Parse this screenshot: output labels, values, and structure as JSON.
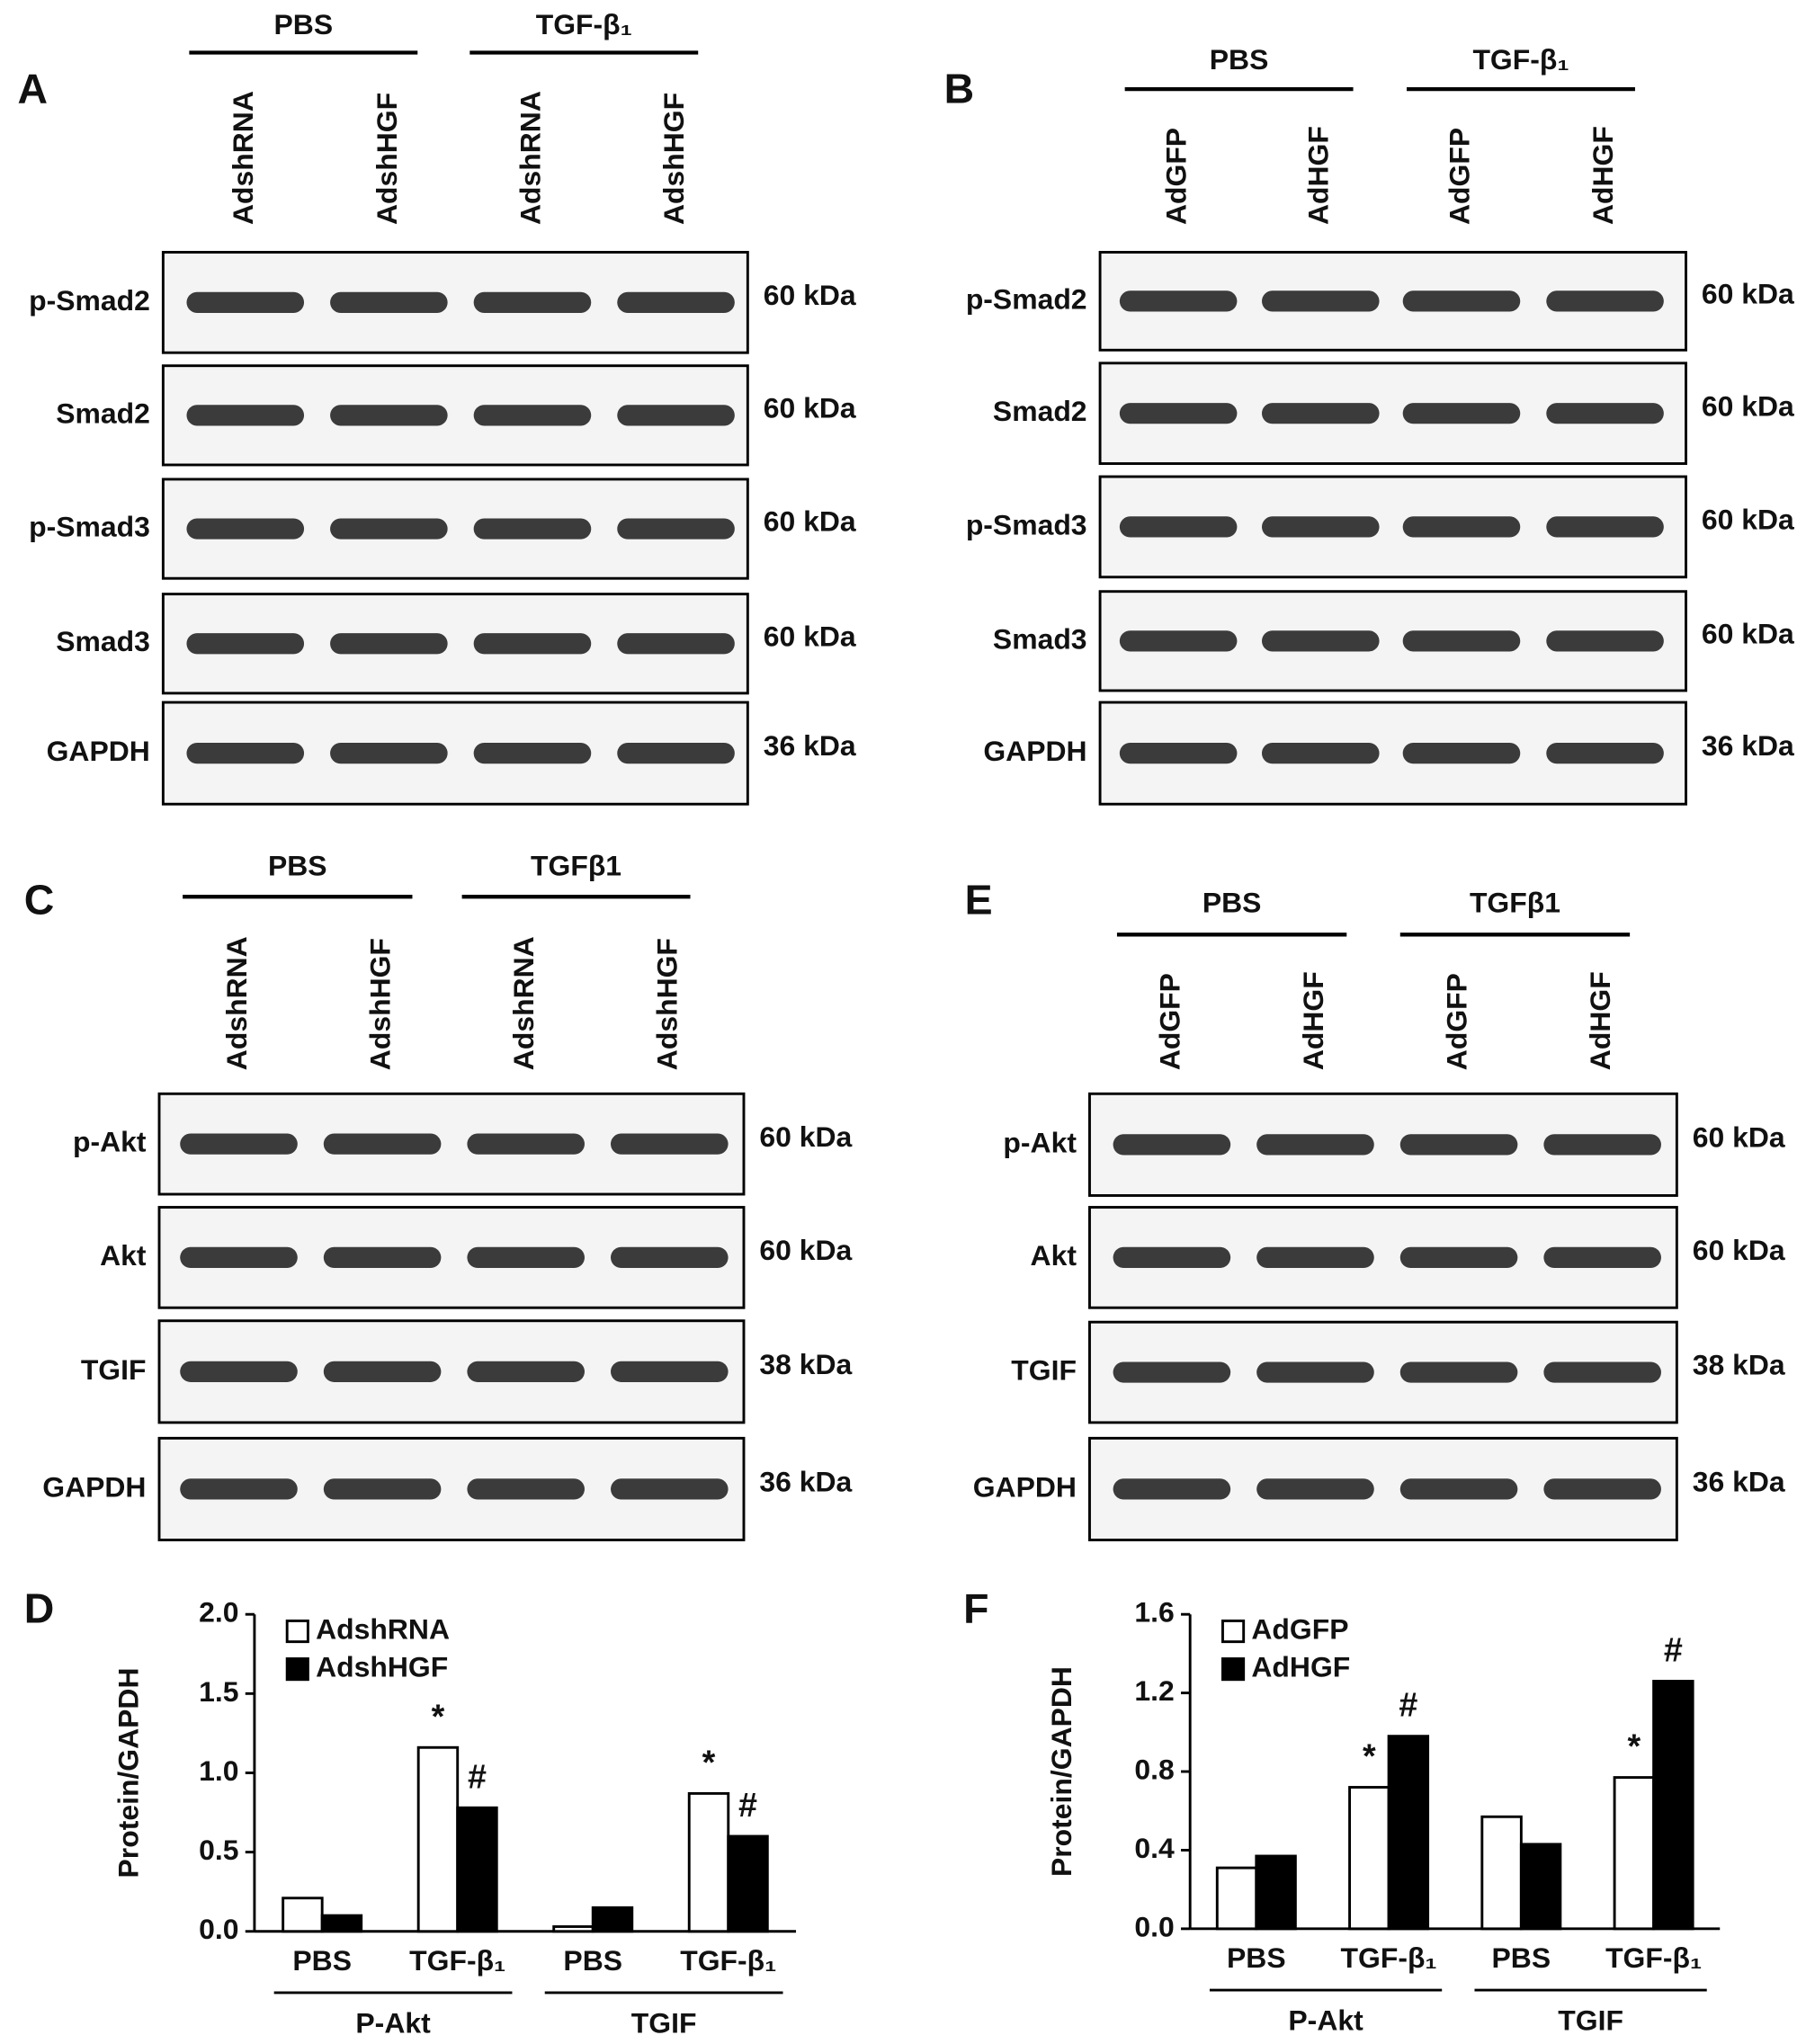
{
  "panels": [
    {
      "label": "A",
      "groups": [
        "PBS",
        "TGF-β₁"
      ],
      "lanes": [
        "AdshRNA",
        "AdshHGF",
        "AdshRNA",
        "AdshHGF"
      ],
      "rows": [
        {
          "name": "p-Smad2",
          "size": "60 kDa"
        },
        {
          "name": "Smad2",
          "size": "60 kDa"
        },
        {
          "name": "p-Smad3",
          "size": "60 kDa"
        },
        {
          "name": "Smad3",
          "size": "60 kDa"
        },
        {
          "name": "GAPDH",
          "size": "36 kDa"
        }
      ]
    },
    {
      "label": "B",
      "groups": [
        "PBS",
        "TGF-β₁"
      ],
      "lanes": [
        "AdGFP",
        "AdHGF",
        "AdGFP",
        "AdHGF"
      ],
      "rows": [
        {
          "name": "p-Smad2",
          "size": "60 kDa"
        },
        {
          "name": "Smad2",
          "size": "60 kDa"
        },
        {
          "name": "p-Smad3",
          "size": "60 kDa"
        },
        {
          "name": "Smad3",
          "size": "60 kDa"
        },
        {
          "name": "GAPDH",
          "size": "36 kDa"
        }
      ]
    },
    {
      "label": "C",
      "groups": [
        "PBS",
        "TGFβ1"
      ],
      "lanes": [
        "AdshRNA",
        "AdshHGF",
        "AdshRNA",
        "AdshHGF"
      ],
      "rows": [
        {
          "name": "p-Akt",
          "size": "60 kDa"
        },
        {
          "name": "Akt",
          "size": "60 kDa"
        },
        {
          "name": "TGIF",
          "size": "38 kDa"
        },
        {
          "name": "GAPDH",
          "size": "36 kDa"
        }
      ]
    },
    {
      "label": "E",
      "groups": [
        "PBS",
        "TGFβ1"
      ],
      "lanes": [
        "AdGFP",
        "AdHGF",
        "AdGFP",
        "AdHGF"
      ],
      "rows": [
        {
          "name": "p-Akt",
          "size": "60 kDa"
        },
        {
          "name": "Akt",
          "size": "60 kDa"
        },
        {
          "name": "TGIF",
          "size": "38 kDa"
        },
        {
          "name": "GAPDH",
          "size": "36 kDa"
        }
      ]
    }
  ],
  "chart_data": [
    {
      "type": "bar",
      "panel_label": "D",
      "y_label": "Protein/GAPDH",
      "categories": [
        "PBS",
        "TGF-β₁",
        "PBS",
        "TGF-β₁"
      ],
      "groups": [
        "P-Akt",
        "TGIF"
      ],
      "series": [
        {
          "name": "AdshRNA",
          "color": "#ffffff",
          "values": [
            0.21,
            1.16,
            0.03,
            0.87
          ],
          "annotations": [
            null,
            "*",
            null,
            "*"
          ]
        },
        {
          "name": "AdshHGF",
          "color": "#000000",
          "values": [
            0.1,
            0.78,
            0.15,
            0.6
          ],
          "annotations": [
            null,
            "#",
            null,
            "#"
          ]
        }
      ],
      "ylim": [
        0,
        2
      ],
      "yticks": [
        {
          "value": 0,
          "label": "0.0"
        },
        {
          "value": 0.5,
          "label": "0.5"
        },
        {
          "value": 1,
          "label": "1.0"
        },
        {
          "value": 1.5,
          "label": "1.5"
        },
        {
          "value": 2,
          "label": "2.0"
        }
      ]
    },
    {
      "type": "bar",
      "panel_label": "F",
      "y_label": "Protein/GAPDH",
      "categories": [
        "PBS",
        "TGF-β₁",
        "PBS",
        "TGF-β₁"
      ],
      "groups": [
        "P-Akt",
        "TGIF"
      ],
      "series": [
        {
          "name": "AdGFP",
          "color": "#ffffff",
          "values": [
            0.31,
            0.72,
            0.57,
            0.77
          ],
          "annotations": [
            null,
            "*",
            null,
            "*"
          ]
        },
        {
          "name": "AdHGF",
          "color": "#000000",
          "values": [
            0.37,
            0.98,
            0.43,
            1.26
          ],
          "annotations": [
            null,
            "#",
            null,
            "#"
          ]
        }
      ],
      "ylim": [
        0,
        1.6
      ],
      "yticks": [
        {
          "value": 0,
          "label": "0.0"
        },
        {
          "value": 0.4,
          "label": "0.4"
        },
        {
          "value": 0.8,
          "label": "0.8"
        },
        {
          "value": 1.2,
          "label": "1.2"
        },
        {
          "value": 1.6,
          "label": "1.6"
        }
      ]
    }
  ]
}
